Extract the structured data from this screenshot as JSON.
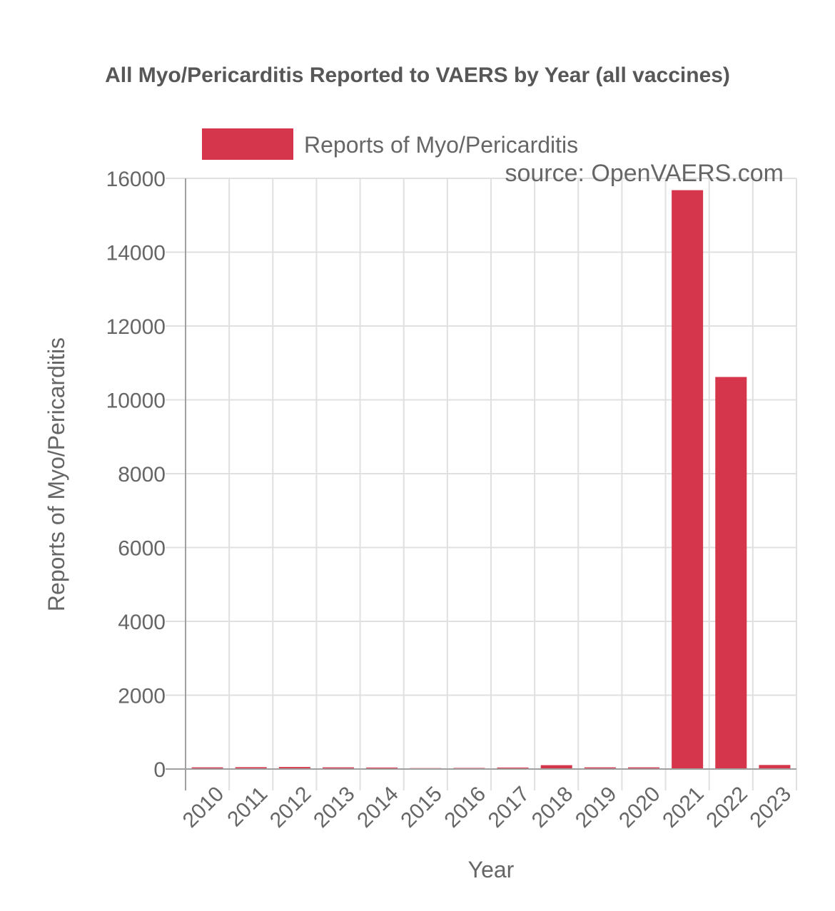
{
  "chart_data": {
    "type": "bar",
    "title": "All Myo/Pericarditis Reported to VAERS by Year (all vaccines)",
    "categories": [
      "2010",
      "2011",
      "2012",
      "2013",
      "2014",
      "2015",
      "2016",
      "2017",
      "2018",
      "2019",
      "2020",
      "2021",
      "2022",
      "2023"
    ],
    "series": [
      {
        "name": "Reports of Myo/Pericarditis",
        "values": [
          45,
          50,
          55,
          45,
          40,
          25,
          30,
          40,
          105,
          45,
          45,
          15680,
          10620,
          110
        ]
      }
    ],
    "xlabel": "Year",
    "ylabel": "Reports of Myo/Pericarditis",
    "ylim": [
      0,
      16000
    ],
    "yticks": [
      "0",
      "2000",
      "4000",
      "6000",
      "8000",
      "10000",
      "12000",
      "14000",
      "16000"
    ],
    "grid": true,
    "legend_position": "top",
    "annotation": "source: OpenVAERS.com",
    "bar_color": "#d6364b",
    "grid_color": "#e0e0e0",
    "axis_color": "#a0a0a0"
  }
}
